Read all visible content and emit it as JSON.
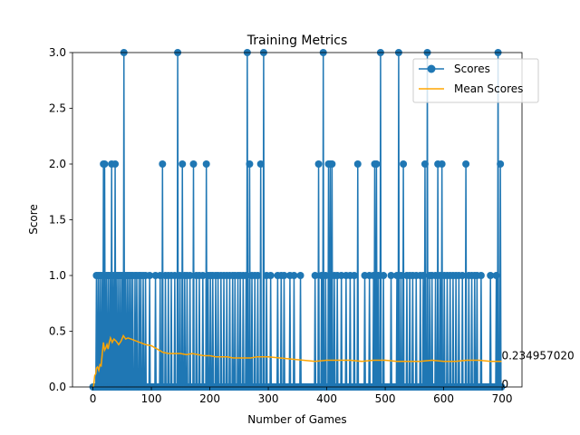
{
  "chart_data": {
    "type": "line",
    "title": "Training Metrics",
    "xlabel": "Number of Games",
    "ylabel": "Score",
    "xlim": [
      -34.95,
      733.95
    ],
    "ylim": [
      0,
      3.0
    ],
    "xticks": [
      0,
      100,
      200,
      300,
      400,
      500,
      600,
      700
    ],
    "yticks": [
      0.0,
      0.5,
      1.0,
      1.5,
      2.0,
      2.5,
      3.0
    ],
    "xtick_labels": [
      "0",
      "100",
      "200",
      "300",
      "400",
      "500",
      "600",
      "700"
    ],
    "ytick_labels": [
      "0.0",
      "0.5",
      "1.0",
      "1.5",
      "2.0",
      "2.5",
      "3.0"
    ],
    "grid": false,
    "legend": {
      "position": "top-right",
      "entries": [
        "Scores",
        "Mean Scores"
      ]
    },
    "colors": {
      "scores": "#1f77b4",
      "mean": "#ffa500"
    },
    "series": [
      {
        "name": "Scores",
        "marker": "circle",
        "nonzero_points": [
          [
            6,
            1
          ],
          [
            9,
            1
          ],
          [
            12,
            1
          ],
          [
            15,
            1
          ],
          [
            18,
            2
          ],
          [
            20,
            2
          ],
          [
            23,
            1
          ],
          [
            26,
            1
          ],
          [
            29,
            1
          ],
          [
            32,
            2
          ],
          [
            35,
            1
          ],
          [
            38,
            2
          ],
          [
            41,
            1
          ],
          [
            44,
            1
          ],
          [
            47,
            1
          ],
          [
            50,
            1
          ],
          [
            53,
            3
          ],
          [
            56,
            1
          ],
          [
            59,
            1
          ],
          [
            62,
            1
          ],
          [
            65,
            1
          ],
          [
            68,
            1
          ],
          [
            72,
            1
          ],
          [
            75,
            1
          ],
          [
            79,
            1
          ],
          [
            82,
            1
          ],
          [
            86,
            1
          ],
          [
            90,
            1
          ],
          [
            97,
            1
          ],
          [
            107,
            1
          ],
          [
            115,
            1
          ],
          [
            119,
            2
          ],
          [
            124,
            1
          ],
          [
            129,
            1
          ],
          [
            134,
            1
          ],
          [
            140,
            1
          ],
          [
            145,
            3
          ],
          [
            149,
            1
          ],
          [
            153,
            2
          ],
          [
            157,
            1
          ],
          [
            161,
            1
          ],
          [
            166,
            1
          ],
          [
            172,
            2
          ],
          [
            177,
            1
          ],
          [
            182,
            1
          ],
          [
            188,
            1
          ],
          [
            194,
            2
          ],
          [
            197,
            1
          ],
          [
            201,
            1
          ],
          [
            205,
            1
          ],
          [
            210,
            1
          ],
          [
            214,
            1
          ],
          [
            219,
            1
          ],
          [
            224,
            1
          ],
          [
            229,
            1
          ],
          [
            234,
            1
          ],
          [
            239,
            1
          ],
          [
            243,
            1
          ],
          [
            248,
            1
          ],
          [
            252,
            1
          ],
          [
            257,
            1
          ],
          [
            262,
            1
          ],
          [
            264,
            3
          ],
          [
            268,
            2
          ],
          [
            272,
            1
          ],
          [
            277,
            1
          ],
          [
            282,
            1
          ],
          [
            287,
            2
          ],
          [
            292,
            3
          ],
          [
            297,
            1
          ],
          [
            304,
            1
          ],
          [
            316,
            1
          ],
          [
            322,
            1
          ],
          [
            327,
            1
          ],
          [
            337,
            1
          ],
          [
            344,
            1
          ],
          [
            355,
            1
          ],
          [
            380,
            1
          ],
          [
            386,
            2
          ],
          [
            391,
            1
          ],
          [
            394,
            3
          ],
          [
            398,
            1
          ],
          [
            403,
            2
          ],
          [
            406,
            2
          ],
          [
            409,
            2
          ],
          [
            413,
            1
          ],
          [
            418,
            1
          ],
          [
            425,
            1
          ],
          [
            433,
            1
          ],
          [
            440,
            1
          ],
          [
            447,
            1
          ],
          [
            453,
            2
          ],
          [
            465,
            1
          ],
          [
            473,
            1
          ],
          [
            480,
            1
          ],
          [
            482,
            2
          ],
          [
            485,
            2
          ],
          [
            488,
            1
          ],
          [
            492,
            3
          ],
          [
            497,
            1
          ],
          [
            510,
            1
          ],
          [
            520,
            1
          ],
          [
            523,
            3
          ],
          [
            527,
            1
          ],
          [
            531,
            2
          ],
          [
            537,
            1
          ],
          [
            542,
            1
          ],
          [
            547,
            1
          ],
          [
            553,
            1
          ],
          [
            560,
            1
          ],
          [
            565,
            1
          ],
          [
            568,
            2
          ],
          [
            572,
            3
          ],
          [
            576,
            1
          ],
          [
            580,
            1
          ],
          [
            586,
            1
          ],
          [
            590,
            2
          ],
          [
            594,
            1
          ],
          [
            597,
            2
          ],
          [
            601,
            1
          ],
          [
            606,
            1
          ],
          [
            611,
            1
          ],
          [
            616,
            1
          ],
          [
            621,
            1
          ],
          [
            626,
            1
          ],
          [
            632,
            1
          ],
          [
            638,
            2
          ],
          [
            643,
            1
          ],
          [
            648,
            1
          ],
          [
            653,
            1
          ],
          [
            657,
            1
          ],
          [
            664,
            1
          ],
          [
            680,
            1
          ],
          [
            690,
            1
          ],
          [
            693,
            3
          ],
          [
            697,
            2
          ]
        ],
        "end_label": "0"
      },
      {
        "name": "Mean Scores",
        "x": [
          1,
          3,
          5,
          6,
          8,
          10,
          12,
          14,
          16,
          18,
          20,
          22,
          24,
          26,
          28,
          30,
          33,
          36,
          40,
          44,
          48,
          52,
          56,
          60,
          65,
          70,
          75,
          80,
          90,
          100,
          110,
          120,
          130,
          140,
          150,
          160,
          170,
          180,
          190,
          200,
          210,
          220,
          230,
          240,
          250,
          260,
          270,
          280,
          290,
          300,
          320,
          340,
          360,
          380,
          400,
          420,
          440,
          460,
          480,
          500,
          520,
          540,
          560,
          580,
          600,
          620,
          640,
          660,
          680,
          699
        ],
        "values": [
          0.0,
          0.1,
          0.12,
          0.17,
          0.18,
          0.15,
          0.2,
          0.19,
          0.3,
          0.4,
          0.33,
          0.35,
          0.38,
          0.34,
          0.4,
          0.44,
          0.4,
          0.43,
          0.41,
          0.38,
          0.41,
          0.46,
          0.43,
          0.44,
          0.43,
          0.42,
          0.41,
          0.4,
          0.38,
          0.37,
          0.34,
          0.31,
          0.3,
          0.3,
          0.3,
          0.29,
          0.3,
          0.29,
          0.28,
          0.28,
          0.27,
          0.27,
          0.27,
          0.26,
          0.26,
          0.26,
          0.26,
          0.27,
          0.27,
          0.27,
          0.26,
          0.25,
          0.24,
          0.23,
          0.24,
          0.24,
          0.24,
          0.23,
          0.24,
          0.24,
          0.23,
          0.23,
          0.23,
          0.24,
          0.23,
          0.23,
          0.24,
          0.24,
          0.23,
          0.23
        ],
        "end_label": "0.234957020"
      }
    ]
  }
}
